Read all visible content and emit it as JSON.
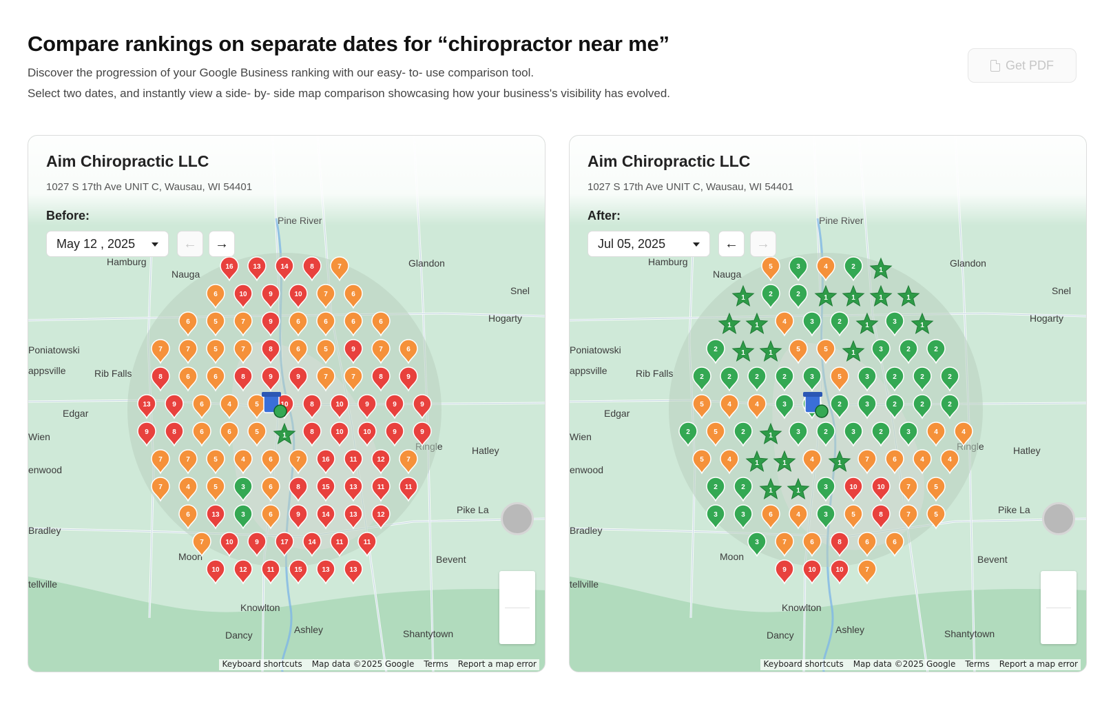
{
  "header": {
    "title": "Compare rankings on separate dates for “chiropractor near me”",
    "subtitle_1": "Discover the progression of your Google Business ranking with our easy- to- use comparison tool.",
    "subtitle_2": "Select two dates, and instantly view a side- by- side map comparison showcasing how your business's visibility has evolved.",
    "pdf_button": "Get PDF"
  },
  "colors": {
    "top3_green": "#34a853",
    "mid_orange": "#f5913a",
    "low_red": "#e8413d",
    "map_land": "#cfe9d8",
    "radius": "#b9cfbf"
  },
  "map_labels": [
    {
      "text": "Pine River"
    },
    {
      "text": "Hamburg"
    },
    {
      "text": "Glandon"
    },
    {
      "text": "Nauga"
    },
    {
      "text": "Snel"
    },
    {
      "text": "Hogarty"
    },
    {
      "text": "Poniatowski"
    },
    {
      "text": "appsville"
    },
    {
      "text": "Rib Falls"
    },
    {
      "text": "Edgar"
    },
    {
      "text": "Wien"
    },
    {
      "text": "enwood"
    },
    {
      "text": "Ringle"
    },
    {
      "text": "Hatley"
    },
    {
      "text": "Pike La"
    },
    {
      "text": "Bradley"
    },
    {
      "text": "Moon"
    },
    {
      "text": "Bevent"
    },
    {
      "text": "tellville"
    },
    {
      "text": "Knowlton"
    },
    {
      "text": "Dancy"
    },
    {
      "text": "Ashley"
    },
    {
      "text": "Shantytown"
    }
  ],
  "map_footer": {
    "shortcuts": "Keyboard shortcuts",
    "data": "Map data ©2025 Google",
    "terms": "Terms",
    "report": "Report a map error"
  },
  "before": {
    "business_name": "Aim Chiropractic LLC",
    "address": "1027  S 17th  Ave UNIT C, Wausau, WI 54401",
    "label": "Before:",
    "date": "May 12 , 2025",
    "prev_disabled": true,
    "next_disabled": false,
    "grid": [
      [
        16,
        13,
        14,
        8,
        7
      ],
      [
        6,
        10,
        9,
        10,
        7,
        6
      ],
      [
        6,
        5,
        7,
        9,
        6,
        6,
        6,
        6
      ],
      [
        7,
        7,
        5,
        7,
        8,
        6,
        5,
        9,
        7,
        6
      ],
      [
        8,
        6,
        6,
        8,
        9,
        9,
        7,
        7,
        8,
        9
      ],
      [
        13,
        9,
        6,
        4,
        5,
        10,
        8,
        10,
        9,
        9,
        9
      ],
      [
        9,
        8,
        6,
        6,
        5,
        1,
        8,
        10,
        10,
        9,
        9
      ],
      [
        7,
        7,
        5,
        4,
        6,
        7,
        16,
        11,
        12,
        7
      ],
      [
        7,
        4,
        5,
        3,
        6,
        8,
        15,
        13,
        11,
        11
      ],
      [
        6,
        13,
        3,
        6,
        9,
        14,
        13,
        12
      ],
      [
        7,
        10,
        9,
        17,
        14,
        11,
        11
      ],
      [
        10,
        12,
        11,
        15,
        13,
        13
      ]
    ]
  },
  "after": {
    "business_name": "Aim Chiropractic LLC",
    "address": "1027  S 17th  Ave UNIT C, Wausau, WI 54401",
    "label": "After:",
    "date": "Jul 05, 2025",
    "prev_disabled": false,
    "next_disabled": true,
    "grid": [
      [
        5,
        3,
        4,
        2,
        1
      ],
      [
        1,
        2,
        2,
        1,
        1,
        1,
        1
      ],
      [
        1,
        1,
        4,
        3,
        2,
        1,
        3,
        1
      ],
      [
        2,
        1,
        1,
        5,
        5,
        1,
        3,
        2,
        2
      ],
      [
        2,
        2,
        2,
        2,
        3,
        5,
        3,
        2,
        2,
        2
      ],
      [
        5,
        4,
        4,
        3,
        3,
        2,
        3,
        2,
        2,
        2
      ],
      [
        2,
        5,
        2,
        1,
        3,
        2,
        3,
        2,
        3,
        4,
        4
      ],
      [
        5,
        4,
        1,
        1,
        4,
        1,
        7,
        6,
        4,
        4
      ],
      [
        2,
        2,
        1,
        1,
        3,
        10,
        10,
        7,
        5
      ],
      [
        3,
        3,
        6,
        4,
        3,
        5,
        8,
        7,
        5
      ],
      [
        3,
        7,
        6,
        8,
        6,
        6
      ],
      [
        9,
        10,
        10,
        7
      ]
    ]
  }
}
